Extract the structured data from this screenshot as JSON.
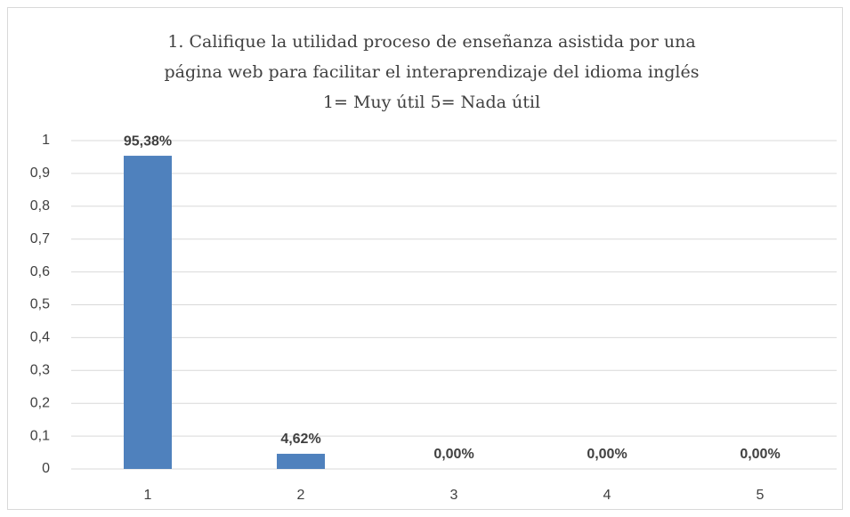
{
  "chart_data": {
    "type": "bar",
    "title": [
      "1. Califique la utilidad proceso de enseñanza asistida por una",
      "página web para facilitar el interaprendizaje del idioma inglés",
      "1= Muy útil 5= Nada útil"
    ],
    "categories": [
      "1",
      "2",
      "3",
      "4",
      "5"
    ],
    "values": [
      0.9538,
      0.0462,
      0,
      0,
      0
    ],
    "value_labels": [
      "95,38%",
      "4,62%",
      "0,00%",
      "0,00%",
      "0,00%"
    ],
    "color": "#4f81bd",
    "ylim": [
      0,
      1
    ],
    "yticks": [
      0,
      {
        "value": 0.1,
        "label": "0,1"
      },
      {
        "value": 0.2,
        "label": "0,2"
      },
      {
        "value": 0.3,
        "label": "0,3"
      },
      {
        "value": 0.4,
        "label": "0,4"
      },
      {
        "value": 0.5,
        "label": "0,5"
      },
      {
        "value": 0.6,
        "label": "0,6"
      },
      {
        "value": 0.7,
        "label": "0,7"
      },
      {
        "value": 0.8,
        "label": "0,8"
      },
      {
        "value": 0.9,
        "label": "0,9"
      },
      1
    ],
    "grid": true
  }
}
